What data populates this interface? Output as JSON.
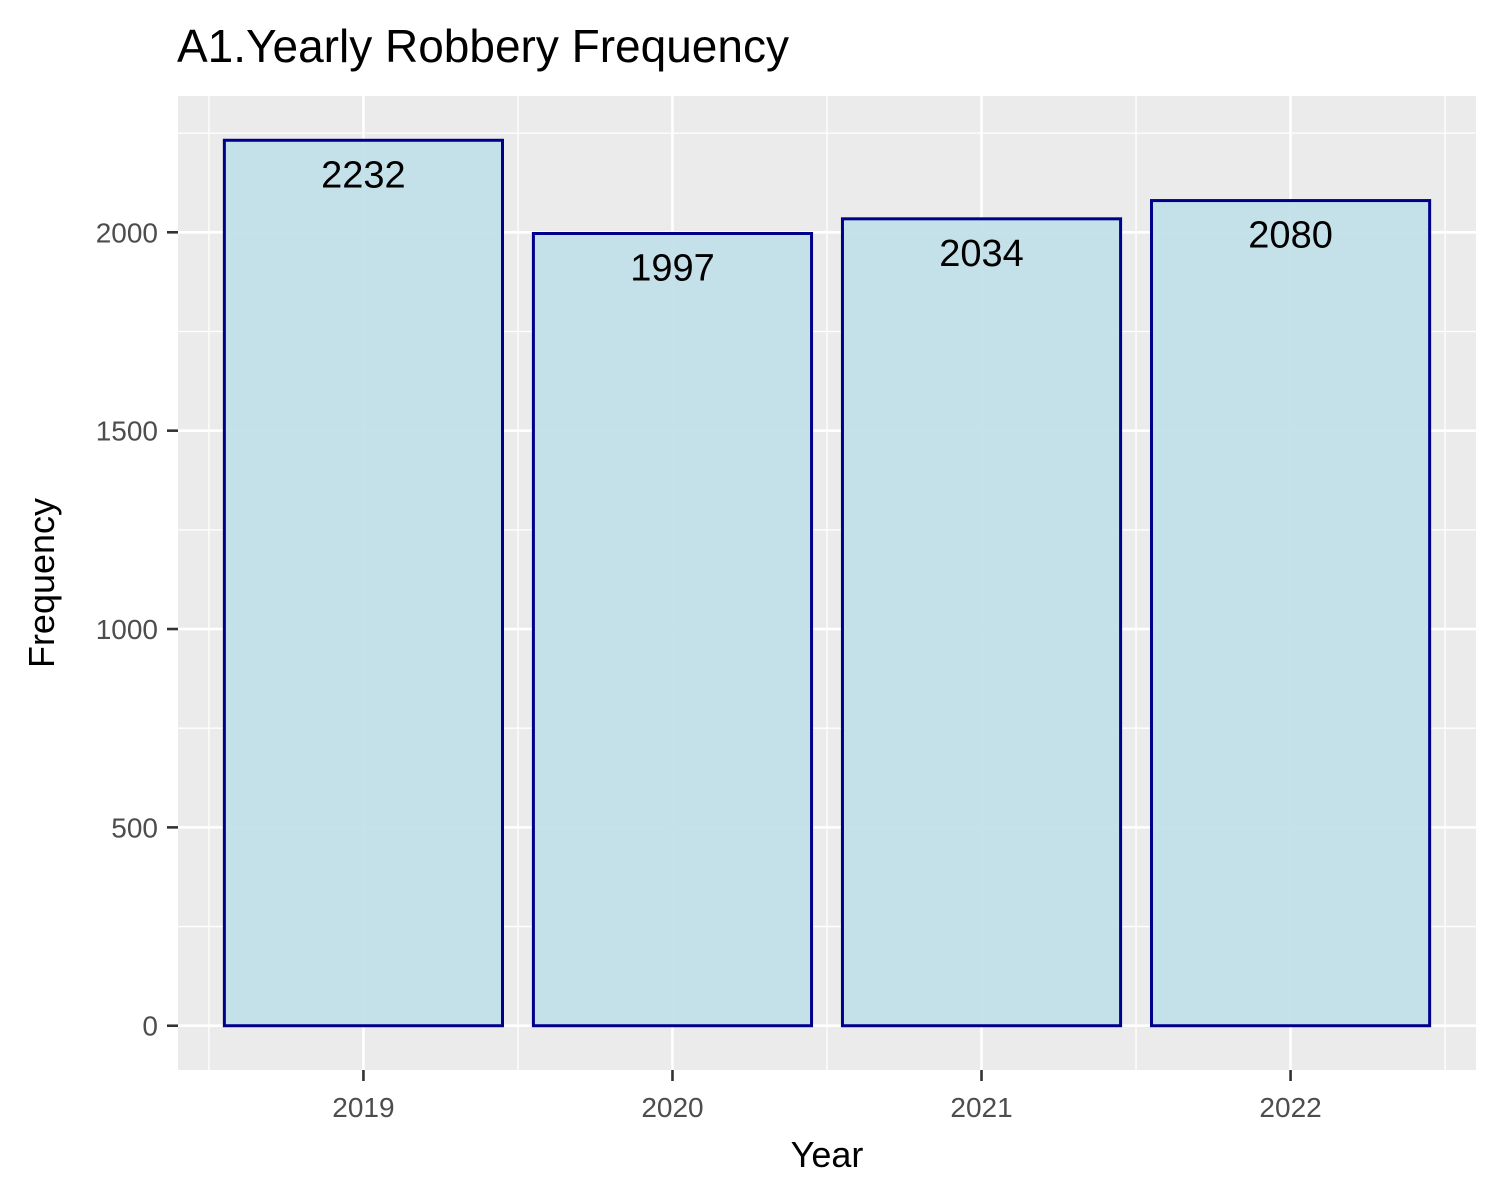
{
  "chart_data": {
    "type": "bar",
    "title": "A1.Yearly Robbery Frequency",
    "xlabel": "Year",
    "ylabel": "Frequency",
    "categories": [
      "2019",
      "2020",
      "2021",
      "2022"
    ],
    "values": [
      2232,
      1997,
      2034,
      2080
    ],
    "data_labels": [
      "2232",
      "1997",
      "2034",
      "2080"
    ],
    "y_ticks": [
      0,
      500,
      1000,
      1500,
      2000
    ],
    "ylim": [
      -111.6,
      2343.6
    ],
    "grid": true,
    "legend": "none",
    "colors": {
      "bar_fill": "#c2dfe8",
      "bar_stroke": "#00008b",
      "panel_background": "#ebebeb",
      "grid": "#ffffff"
    }
  }
}
